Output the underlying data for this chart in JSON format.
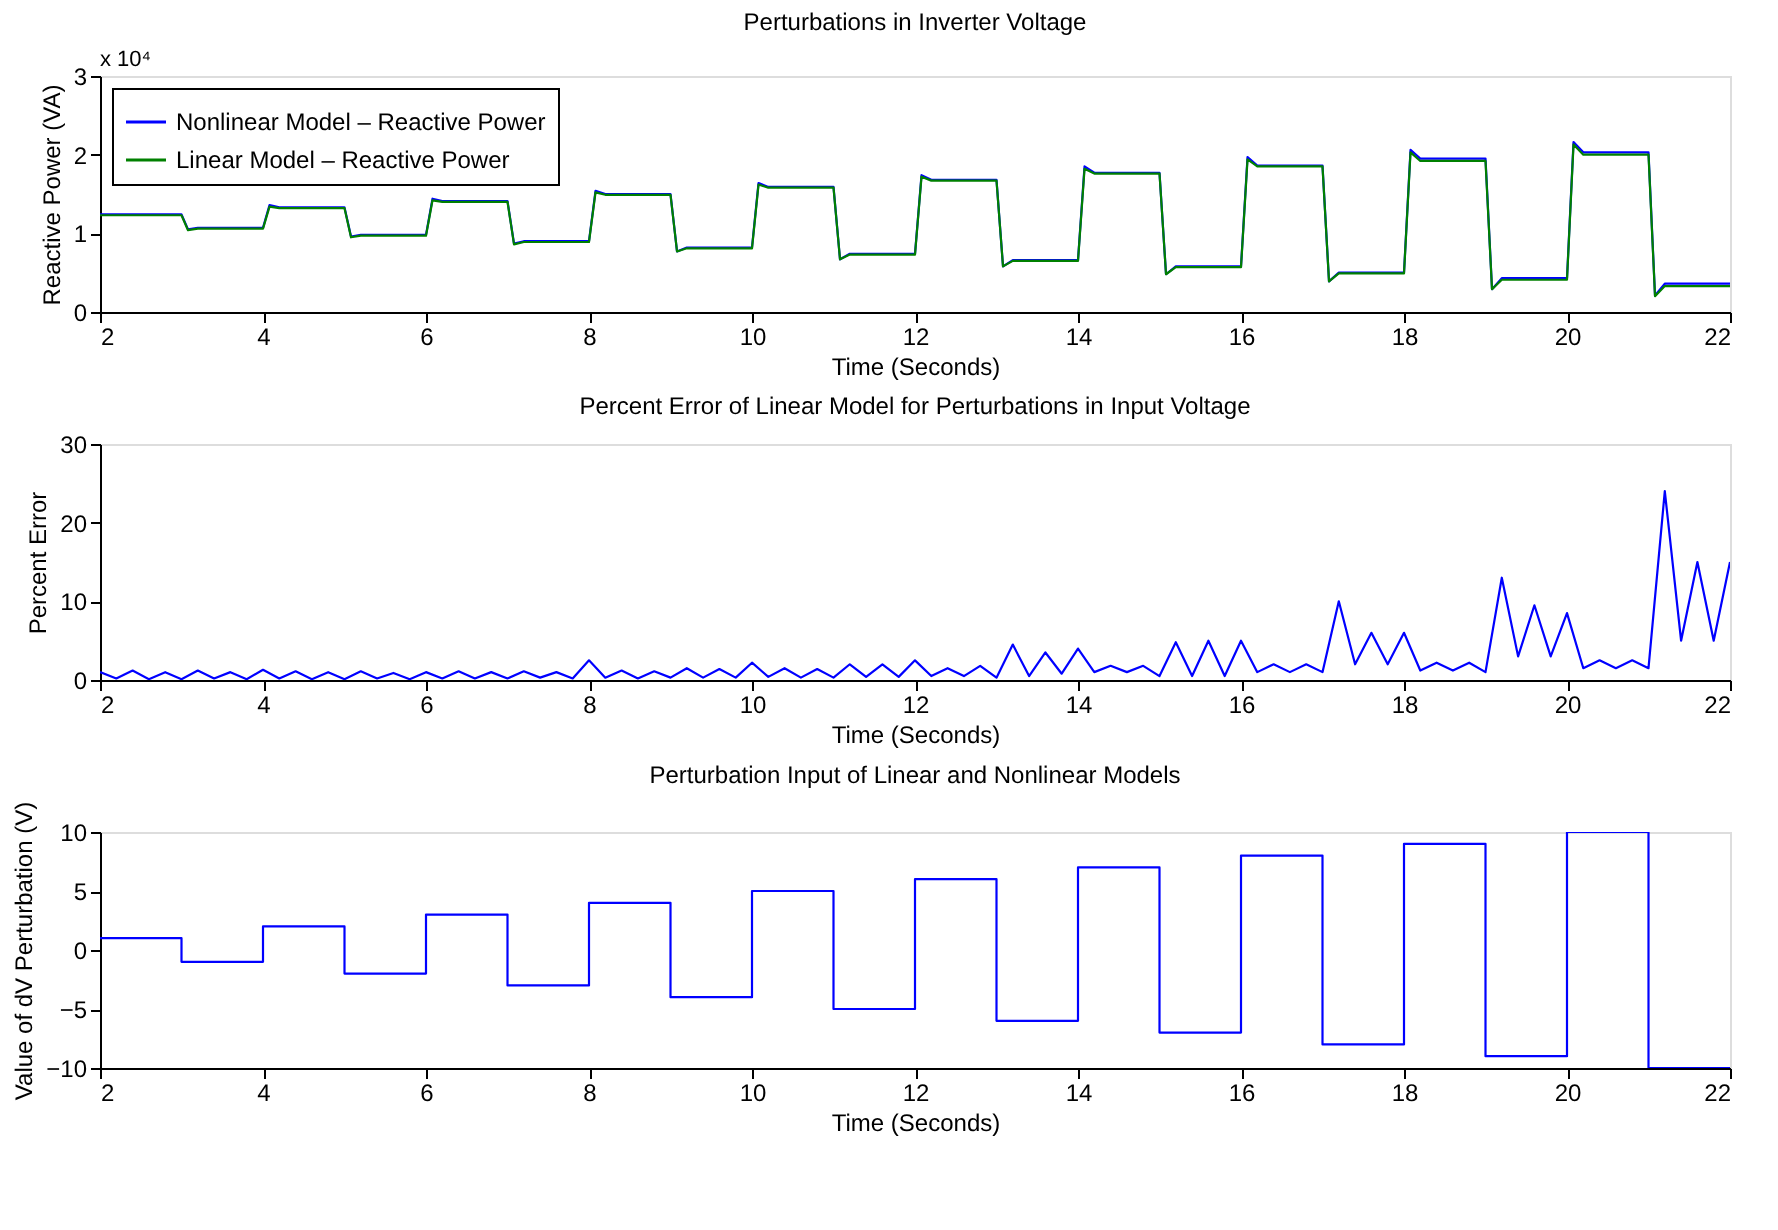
{
  "chart_data": [
    {
      "type": "line",
      "title": "Perturbations in Inverter Voltage",
      "xlabel": "Time (Seconds)",
      "ylabel": "Reactive Power (VA)",
      "annotations": [
        "x 10⁴"
      ],
      "x": [
        2,
        3,
        3.08,
        3.2,
        4,
        4.08,
        4.2,
        5,
        5.08,
        5.2,
        6,
        6.08,
        6.2,
        7,
        7.08,
        7.2,
        8,
        8.08,
        8.2,
        9,
        9.08,
        9.2,
        10,
        10.08,
        10.2,
        11,
        11.08,
        11.2,
        12,
        12.08,
        12.2,
        13,
        13.08,
        13.2,
        14,
        14.08,
        14.2,
        15,
        15.08,
        15.2,
        16,
        16.08,
        16.2,
        17,
        17.08,
        17.2,
        18,
        18.08,
        18.2,
        19,
        19.08,
        19.2,
        20,
        20.08,
        20.2,
        21,
        21.08,
        21.2,
        22
      ],
      "series": [
        {
          "name": "Nonlinear Model – Reactive Power",
          "color": "#0000ff",
          "values": [
            1.24,
            1.24,
            1.05,
            1.07,
            1.07,
            1.36,
            1.33,
            1.33,
            0.96,
            0.98,
            0.98,
            1.44,
            1.41,
            1.41,
            0.87,
            0.9,
            0.9,
            1.54,
            1.5,
            1.5,
            0.77,
            0.82,
            0.82,
            1.64,
            1.59,
            1.59,
            0.67,
            0.74,
            0.74,
            1.74,
            1.68,
            1.68,
            0.58,
            0.66,
            0.66,
            1.85,
            1.77,
            1.77,
            0.48,
            0.58,
            0.58,
            1.97,
            1.86,
            1.86,
            0.39,
            0.5,
            0.5,
            2.06,
            1.95,
            1.95,
            0.29,
            0.43,
            0.43,
            2.16,
            2.03,
            2.03,
            0.21,
            0.36,
            0.36
          ]
        },
        {
          "name": "Linear Model – Reactive Power",
          "color": "#008000",
          "values": [
            1.23,
            1.23,
            1.04,
            1.06,
            1.06,
            1.34,
            1.32,
            1.32,
            0.95,
            0.97,
            0.97,
            1.42,
            1.4,
            1.4,
            0.86,
            0.89,
            0.89,
            1.52,
            1.49,
            1.49,
            0.77,
            0.81,
            0.81,
            1.62,
            1.58,
            1.58,
            0.67,
            0.73,
            0.73,
            1.72,
            1.67,
            1.67,
            0.58,
            0.65,
            0.65,
            1.82,
            1.76,
            1.76,
            0.48,
            0.57,
            0.57,
            1.94,
            1.85,
            1.85,
            0.39,
            0.49,
            0.49,
            2.03,
            1.92,
            1.92,
            0.29,
            0.41,
            0.41,
            2.13,
            2.0,
            2.0,
            0.2,
            0.33,
            0.33
          ]
        }
      ],
      "xlim": [
        2,
        22
      ],
      "xticks": [
        2,
        4,
        6,
        8,
        10,
        12,
        14,
        16,
        18,
        20,
        22
      ],
      "ylim": [
        0,
        3
      ],
      "yticks": [
        0,
        1,
        2,
        3
      ],
      "grid": false,
      "legend": "top left"
    },
    {
      "type": "line",
      "title": "Percent Error of Linear Model for Perturbations in Input Voltage",
      "xlabel": "Time (Seconds)",
      "ylabel": "Percent Error",
      "x": [
        2.0,
        2.2,
        2.4,
        2.6,
        2.8,
        3.0,
        3.2,
        3.4,
        3.6,
        3.8,
        4.0,
        4.2,
        4.4,
        4.6,
        4.8,
        5.0,
        5.2,
        5.4,
        5.6,
        5.8,
        6.0,
        6.2,
        6.4,
        6.6,
        6.8,
        7.0,
        7.2,
        7.4,
        7.6,
        7.8,
        8.0,
        8.2,
        8.4,
        8.6,
        8.8,
        9.0,
        9.2,
        9.4,
        9.6,
        9.8,
        10.0,
        10.2,
        10.4,
        10.6,
        10.8,
        11.0,
        11.2,
        11.4,
        11.6,
        11.8,
        12.0,
        12.2,
        12.4,
        12.6,
        12.8,
        13.0,
        13.2,
        13.4,
        13.6,
        13.8,
        14.0,
        14.2,
        14.4,
        14.6,
        14.8,
        15.0,
        15.2,
        15.4,
        15.6,
        15.8,
        16.0,
        16.2,
        16.4,
        16.6,
        16.8,
        17.0,
        17.2,
        17.4,
        17.6,
        17.8,
        18.0,
        18.2,
        18.4,
        18.6,
        18.8,
        19.0,
        19.2,
        19.4,
        19.6,
        19.8,
        20.0,
        20.2,
        20.4,
        20.6,
        20.8,
        21.0,
        21.2,
        21.4,
        21.6,
        21.8,
        22.0
      ],
      "series": [
        {
          "color": "#0000ff",
          "values": [
            1.0,
            0.2,
            1.2,
            0.1,
            1.0,
            0.1,
            1.2,
            0.2,
            1.0,
            0.1,
            1.3,
            0.2,
            1.1,
            0.1,
            1.0,
            0.1,
            1.1,
            0.2,
            0.9,
            0.1,
            1.0,
            0.2,
            1.1,
            0.2,
            1.0,
            0.2,
            1.1,
            0.3,
            1.0,
            0.2,
            2.5,
            0.3,
            1.2,
            0.2,
            1.1,
            0.3,
            1.5,
            0.3,
            1.4,
            0.3,
            2.2,
            0.4,
            1.5,
            0.3,
            1.4,
            0.3,
            2.0,
            0.4,
            2.0,
            0.4,
            2.5,
            0.5,
            1.5,
            0.5,
            1.8,
            0.3,
            4.5,
            0.5,
            3.5,
            0.8,
            4.0,
            1.0,
            1.8,
            1.0,
            1.8,
            0.5,
            4.8,
            0.5,
            5.0,
            0.5,
            5.0,
            1.0,
            2.0,
            1.0,
            2.0,
            1.0,
            10.0,
            2.0,
            6.0,
            2.0,
            6.0,
            1.2,
            2.2,
            1.2,
            2.2,
            1.0,
            13.0,
            3.0,
            9.5,
            3.0,
            8.5,
            1.5,
            2.5,
            1.5,
            2.5,
            1.5,
            24.0,
            5.0,
            15.0,
            5.0,
            15.0
          ]
        }
      ],
      "xlim": [
        2,
        22
      ],
      "xticks": [
        2,
        4,
        6,
        8,
        10,
        12,
        14,
        16,
        18,
        20,
        22
      ],
      "ylim": [
        0,
        30
      ],
      "yticks": [
        0,
        10,
        20,
        30
      ],
      "grid": false,
      "legend": false
    },
    {
      "type": "step",
      "title": "Perturbation Input of Linear and Nonlinear Models",
      "xlabel": "Time (Seconds)",
      "ylabel": "Value of dV Perturbation (V)",
      "x": [
        2,
        3,
        4,
        5,
        6,
        7,
        8,
        9,
        10,
        11,
        12,
        13,
        14,
        15,
        16,
        17,
        18,
        19,
        20,
        21,
        22
      ],
      "series": [
        {
          "color": "#0000ff",
          "values": [
            1,
            -1,
            2,
            -2,
            3,
            -3,
            4,
            -4,
            5,
            -5,
            6,
            -6,
            7,
            -7,
            8,
            -8,
            9,
            -9,
            10,
            -10,
            -10
          ]
        }
      ],
      "xlim": [
        2,
        22
      ],
      "xticks": [
        2,
        4,
        6,
        8,
        10,
        12,
        14,
        16,
        18,
        20,
        22
      ],
      "ylim": [
        -10,
        10
      ],
      "yticks": [
        -10,
        -5,
        0,
        5,
        10
      ],
      "grid": false,
      "legend": false
    }
  ]
}
